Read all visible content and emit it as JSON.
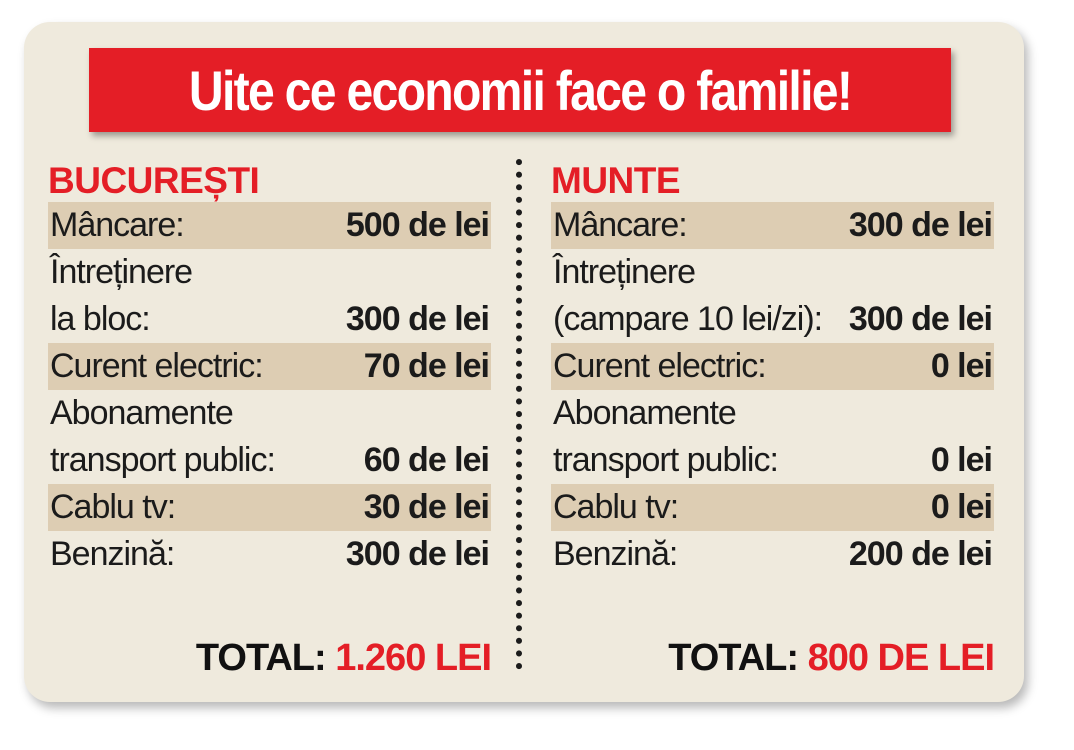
{
  "title": "Uite ce economii face o familie!",
  "colors": {
    "accent": "#e41e26",
    "card": "#efeadd",
    "stripe": "#ddcdb3"
  },
  "left": {
    "heading": "BUCUREȘTI",
    "rows": [
      {
        "label": "Mâncare:",
        "value": "500 de lei"
      },
      {
        "label": "Întreținere\nla bloc:",
        "value": "300 de lei"
      },
      {
        "label": "Curent electric:",
        "value": "70 de lei"
      },
      {
        "label": "Abonamente\ntransport public:",
        "value": "60 de lei"
      },
      {
        "label": "Cablu tv:",
        "value": "30 de lei"
      },
      {
        "label": "Benzină:",
        "value": "300 de lei"
      }
    ],
    "total_label": "TOTAL:",
    "total_value": "1.260 LEI"
  },
  "right": {
    "heading": "MUNTE",
    "rows": [
      {
        "label": "Mâncare:",
        "value": "300 de lei"
      },
      {
        "label": "Întreținere\n(campare 10 lei/zi):",
        "value": "300 de lei"
      },
      {
        "label": "Curent electric:",
        "value": "0 lei"
      },
      {
        "label": "Abonamente\ntransport public:",
        "value": "0 lei"
      },
      {
        "label": "Cablu tv:",
        "value": "0 lei"
      },
      {
        "label": "Benzină:",
        "value": "200 de lei"
      }
    ],
    "total_label": "TOTAL:",
    "total_value": "800 DE LEI"
  }
}
